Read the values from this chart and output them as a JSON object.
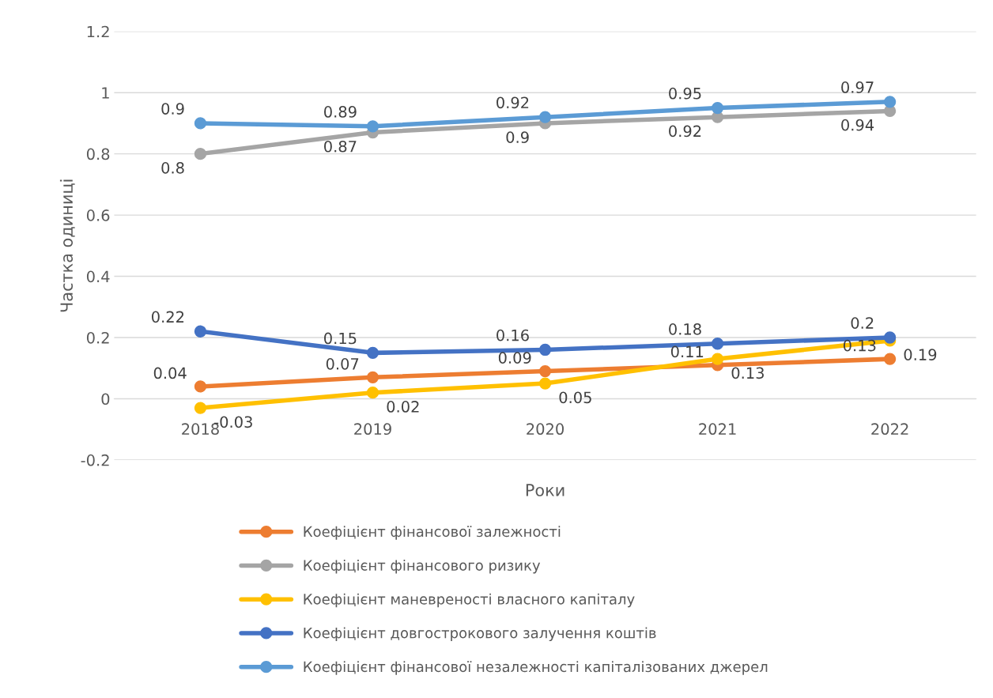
{
  "chart_data": {
    "type": "line",
    "xlabel": "Роки",
    "ylabel": "Частка одиниці",
    "categories": [
      "2018",
      "2019",
      "2020",
      "2021",
      "2022"
    ],
    "series": [
      {
        "name": "Коефіцієнт фінансової залежності",
        "color": "#ed7d31",
        "values": [
          0.04,
          0.07,
          0.09,
          0.11,
          0.13
        ]
      },
      {
        "name": "Коефіцієнт фінансового ризику",
        "color": "#a5a5a5",
        "values": [
          0.8,
          0.87,
          0.9,
          0.92,
          0.94
        ]
      },
      {
        "name": "Коефіцієнт маневреності власного капіталу",
        "color": "#ffc000",
        "values": [
          -0.03,
          0.02,
          0.05,
          0.13,
          0.19
        ]
      },
      {
        "name": "Коефіцієнт довгострокового залучення коштів",
        "color": "#4472c4",
        "values": [
          0.22,
          0.15,
          0.16,
          0.18,
          0.2
        ]
      },
      {
        "name": "Коефіцієнт фінансової незалежності капіталізованих джерел",
        "color": "#5b9bd5",
        "values": [
          0.9,
          0.89,
          0.92,
          0.95,
          0.97
        ]
      }
    ],
    "ylim": [
      -0.2,
      1.2
    ],
    "yticks": [
      -0.2,
      0,
      0.2,
      0.4,
      0.6,
      0.8,
      1,
      1.2
    ],
    "grid": "y",
    "legend": "bottom",
    "marker": "circle",
    "line_style": "solid",
    "data_labels": true
  }
}
